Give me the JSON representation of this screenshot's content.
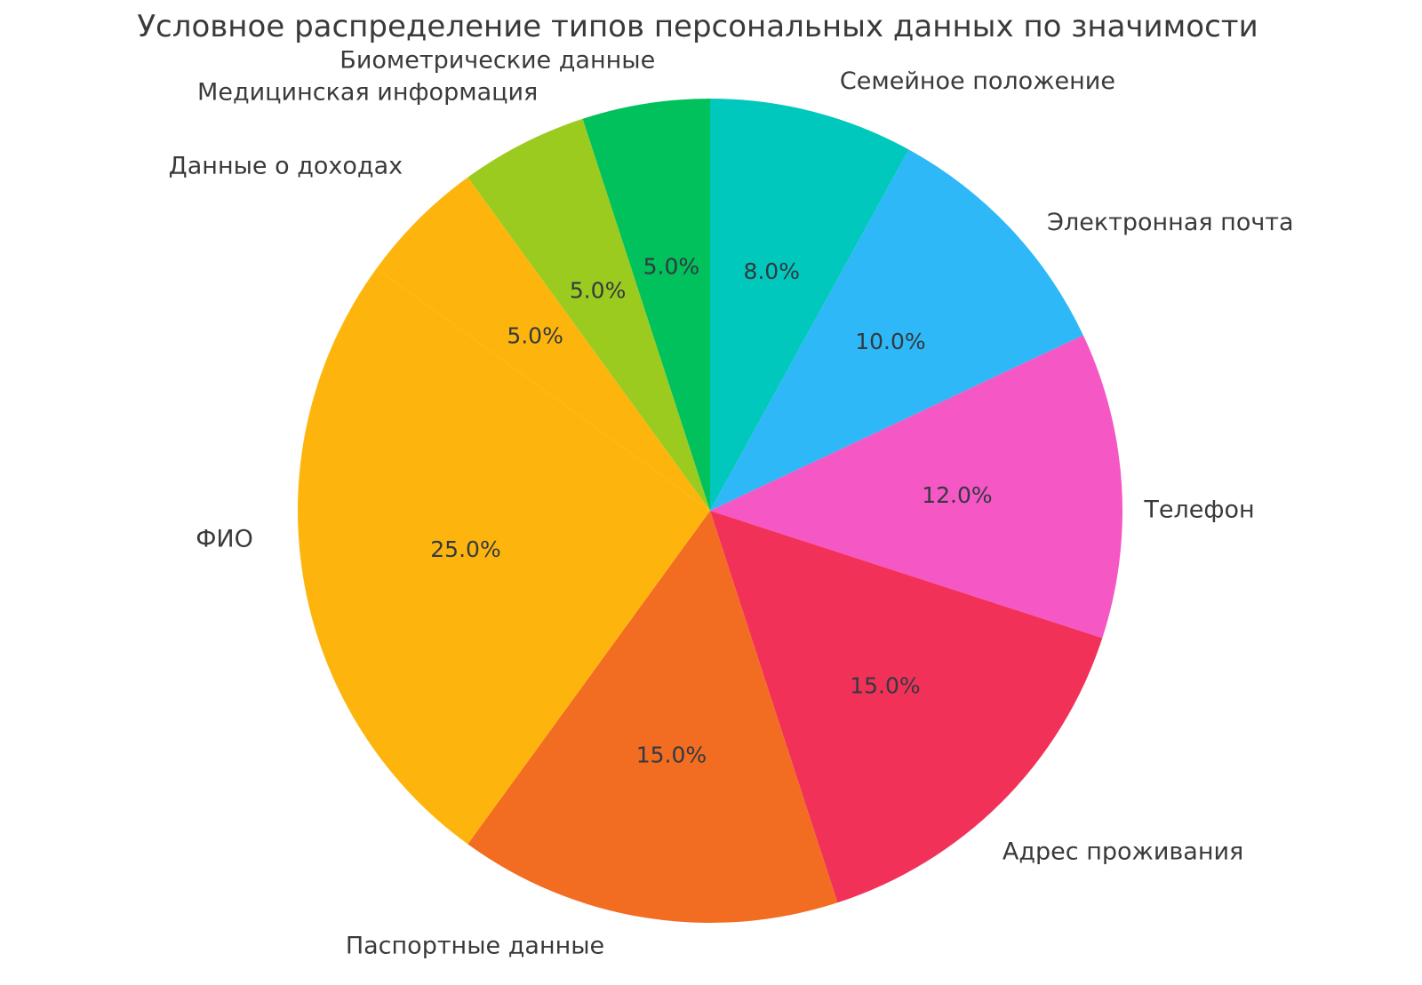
{
  "chart_data": {
    "type": "pie",
    "title": "Условное распределение типов персональных данных по значимости",
    "start_angle": 90,
    "clockwise": true,
    "legend": "none",
    "background_color": "#FFFFFF",
    "title_color": "#3A3A3A",
    "label_color": "#3A3A3A",
    "pct_label_color": "#333940",
    "slices": [
      {
        "label": "Семейное положение",
        "value": 8.0,
        "pct_label": "8.0%",
        "color": "#00C8BC"
      },
      {
        "label": "Электронная почта",
        "value": 10.0,
        "pct_label": "10.0%",
        "color": "#2EB8F7"
      },
      {
        "label": "Телефон",
        "value": 12.0,
        "pct_label": "12.0%",
        "color": "#F557C4"
      },
      {
        "label": "Адрес проживания",
        "value": 15.0,
        "pct_label": "15.0%",
        "color": "#F23159"
      },
      {
        "label": "Паспортные данные",
        "value": 15.0,
        "pct_label": "15.0%",
        "color": "#F26D21"
      },
      {
        "label": "ФИО",
        "value": 25.0,
        "pct_label": "25.0%",
        "color": "#FDB50D"
      },
      {
        "label": "Данные о доходах",
        "value": 5.0,
        "pct_label": "5.0%",
        "color": "#FDB50D"
      },
      {
        "label": "Медицинская информация",
        "value": 5.0,
        "pct_label": "5.0%",
        "color": "#9CCB1F"
      },
      {
        "label": "Биометрические данные",
        "value": 5.0,
        "pct_label": "5.0%",
        "color": "#00C15C"
      }
    ]
  }
}
